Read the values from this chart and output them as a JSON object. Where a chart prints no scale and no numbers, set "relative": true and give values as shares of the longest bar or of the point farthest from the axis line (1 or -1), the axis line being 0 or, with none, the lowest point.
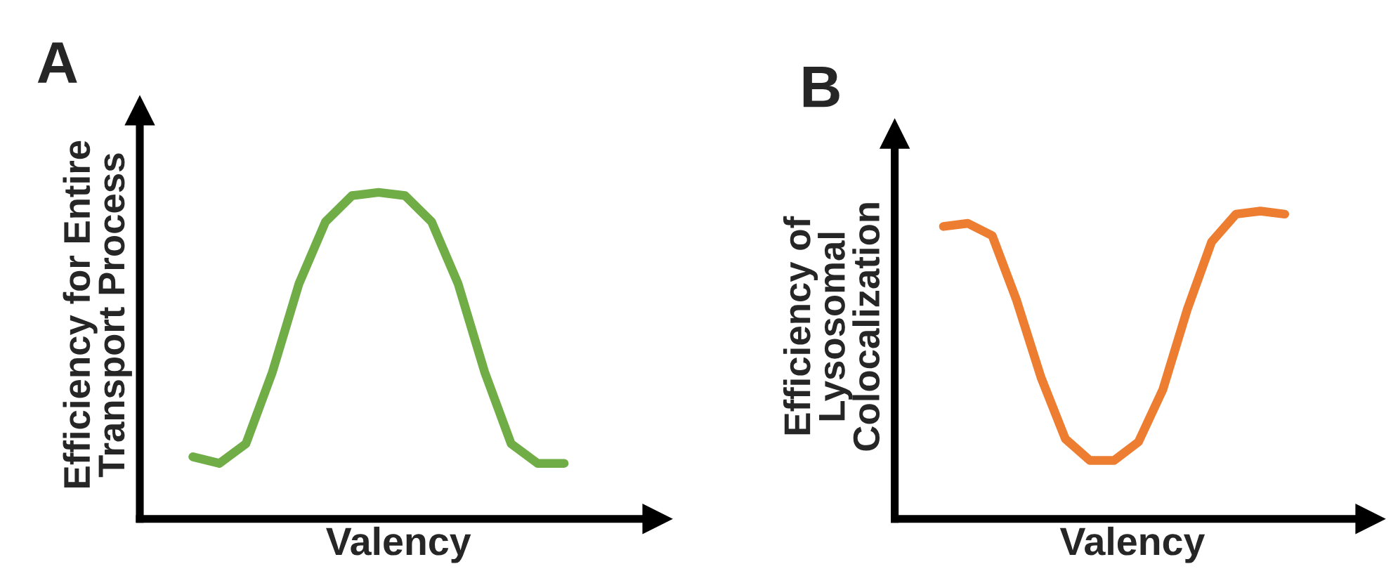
{
  "chart_data": [
    {
      "type": "line",
      "title": "A",
      "xlabel": "Valency",
      "ylabel": "Efficiency for Entire\nTransport Process",
      "relative": true,
      "tick_labels": false,
      "categories": [
        null,
        null,
        null,
        null,
        null,
        null,
        null,
        null,
        null,
        null,
        null,
        null,
        null,
        null,
        null
      ],
      "series": [
        {
          "color": "#70ad47",
          "values": [
            0.19,
            0.17,
            0.23,
            0.45,
            0.72,
            0.91,
            0.99,
            1,
            0.99,
            0.91,
            0.72,
            0.45,
            0.23,
            0.17,
            0.17
          ]
        }
      ]
    },
    {
      "type": "line",
      "title": "B",
      "xlabel": "Valency",
      "ylabel": "Efficiency of\nLysosomal\nColocalization",
      "relative": true,
      "tick_labels": false,
      "categories": [
        null,
        null,
        null,
        null,
        null,
        null,
        null,
        null,
        null,
        null,
        null,
        null,
        null,
        null,
        null
      ],
      "series": [
        {
          "color": "#ed7d31",
          "values": [
            0.95,
            0.96,
            0.92,
            0.71,
            0.46,
            0.26,
            0.19,
            0.19,
            0.25,
            0.42,
            0.68,
            0.9,
            0.99,
            1,
            0.99
          ]
        }
      ]
    }
  ]
}
